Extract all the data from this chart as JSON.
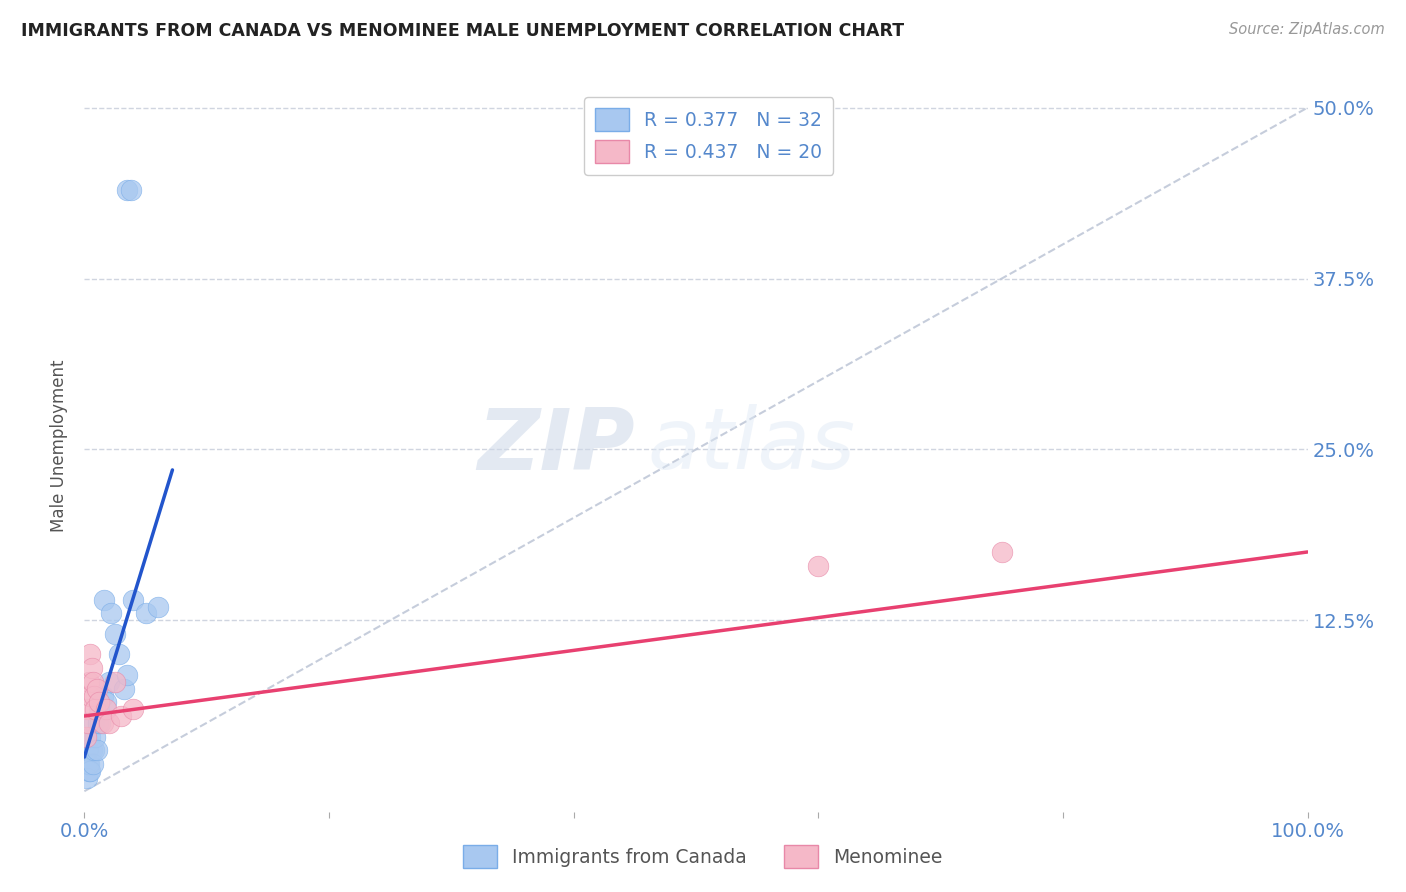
{
  "title": "IMMIGRANTS FROM CANADA VS MENOMINEE MALE UNEMPLOYMENT CORRELATION CHART",
  "source": "Source: ZipAtlas.com",
  "ylabel": "Male Unemployment",
  "legend_r1": "R = 0.377",
  "legend_n1": "N = 32",
  "legend_r2": "R = 0.437",
  "legend_n2": "N = 20",
  "blue_color": "#a8c8f0",
  "blue_edge": "#7aade8",
  "pink_color": "#f5b8c8",
  "pink_edge": "#e888a8",
  "trendline_blue": "#2255cc",
  "trendline_pink": "#e84070",
  "diag_color": "#c0c8d8",
  "grid_color": "#d0d5e0",
  "tick_color": "#5588cc",
  "blue_points_x": [
    0.001,
    0.002,
    0.002,
    0.003,
    0.003,
    0.004,
    0.004,
    0.005,
    0.005,
    0.006,
    0.007,
    0.008,
    0.008,
    0.009,
    0.01,
    0.011,
    0.012,
    0.013,
    0.015,
    0.016,
    0.018,
    0.02,
    0.022,
    0.025,
    0.028,
    0.032,
    0.035,
    0.04,
    0.05,
    0.06,
    0.035,
    0.038
  ],
  "blue_points_y": [
    0.02,
    0.01,
    0.03,
    0.02,
    0.03,
    0.015,
    0.02,
    0.04,
    0.015,
    0.03,
    0.02,
    0.05,
    0.03,
    0.04,
    0.03,
    0.05,
    0.06,
    0.05,
    0.07,
    0.14,
    0.065,
    0.08,
    0.13,
    0.115,
    0.1,
    0.075,
    0.085,
    0.14,
    0.13,
    0.135,
    0.44,
    0.44
  ],
  "pink_points_x": [
    0.001,
    0.002,
    0.003,
    0.004,
    0.005,
    0.005,
    0.006,
    0.007,
    0.008,
    0.009,
    0.01,
    0.012,
    0.015,
    0.018,
    0.02,
    0.025,
    0.03,
    0.04,
    0.6,
    0.75
  ],
  "pink_points_y": [
    0.04,
    0.06,
    0.05,
    0.08,
    0.07,
    0.1,
    0.09,
    0.08,
    0.07,
    0.06,
    0.075,
    0.065,
    0.05,
    0.06,
    0.05,
    0.08,
    0.055,
    0.06,
    0.165,
    0.175
  ],
  "blue_trendline_x": [
    0.0,
    0.072
  ],
  "blue_trendline_y": [
    0.025,
    0.235
  ],
  "pink_trendline_x": [
    0.0,
    1.0
  ],
  "pink_trendline_y": [
    0.055,
    0.175
  ],
  "xlim": [
    0.0,
    1.0
  ],
  "ylim": [
    -0.015,
    0.52
  ]
}
